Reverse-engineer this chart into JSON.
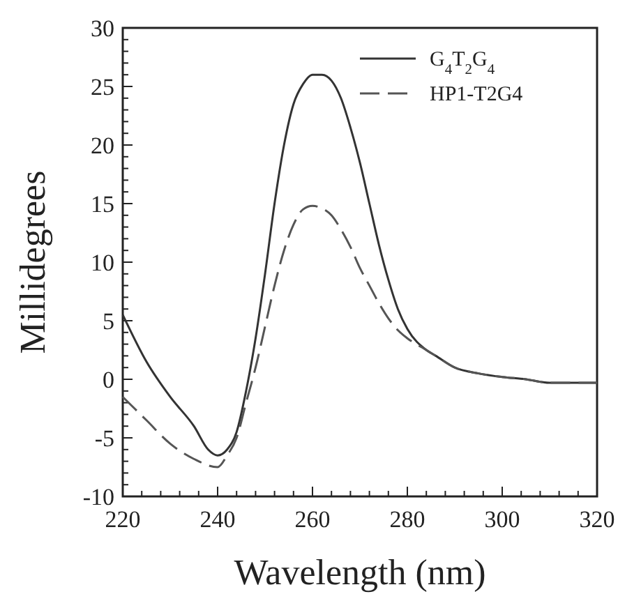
{
  "chart_data": {
    "type": "line",
    "xlabel": "Wavelength (nm)",
    "ylabel": "Millidegrees",
    "xlim": [
      220,
      320
    ],
    "ylim": [
      -10,
      30
    ],
    "xticks": [
      220,
      {
        "value": 224,
        "label": null
      },
      {
        "value": 228,
        "label": null
      },
      {
        "value": 232,
        "label": null
      },
      {
        "value": 236,
        "label": null
      },
      240,
      {
        "value": 244,
        "label": null
      },
      {
        "value": 248,
        "label": null
      },
      {
        "value": 252,
        "label": null
      },
      {
        "value": 256,
        "label": null
      },
      260,
      {
        "value": 264,
        "label": null
      },
      {
        "value": 268,
        "label": null
      },
      {
        "value": 272,
        "label": null
      },
      {
        "value": 276,
        "label": null
      },
      280,
      {
        "value": 284,
        "label": null
      },
      {
        "value": 288,
        "label": null
      },
      {
        "value": 292,
        "label": null
      },
      {
        "value": 296,
        "label": null
      },
      300,
      {
        "value": 304,
        "label": null
      },
      {
        "value": 308,
        "label": null
      },
      {
        "value": 312,
        "label": null
      },
      {
        "value": 316,
        "label": null
      },
      320
    ],
    "yticks": [
      -10,
      {
        "value": -9,
        "label": null
      },
      {
        "value": -8,
        "label": null
      },
      {
        "value": -7,
        "label": null
      },
      {
        "value": -6,
        "label": null
      },
      -5,
      {
        "value": -4,
        "label": null
      },
      {
        "value": -3,
        "label": null
      },
      {
        "value": -2,
        "label": null
      },
      {
        "value": -1,
        "label": null
      },
      0,
      {
        "value": 1,
        "label": null
      },
      {
        "value": 2,
        "label": null
      },
      {
        "value": 3,
        "label": null
      },
      {
        "value": 4,
        "label": null
      },
      5,
      {
        "value": 6,
        "label": null
      },
      {
        "value": 7,
        "label": null
      },
      {
        "value": 8,
        "label": null
      },
      {
        "value": 9,
        "label": null
      },
      10,
      {
        "value": 11,
        "label": null
      },
      {
        "value": 12,
        "label": null
      },
      {
        "value": 13,
        "label": null
      },
      {
        "value": 14,
        "label": null
      },
      15,
      {
        "value": 16,
        "label": null
      },
      {
        "value": 17,
        "label": null
      },
      {
        "value": 18,
        "label": null
      },
      {
        "value": 19,
        "label": null
      },
      20,
      {
        "value": 21,
        "label": null
      },
      {
        "value": 22,
        "label": null
      },
      {
        "value": 23,
        "label": null
      },
      {
        "value": 24,
        "label": null
      },
      25,
      {
        "value": 26,
        "label": null
      },
      {
        "value": 27,
        "label": null
      },
      {
        "value": 28,
        "label": null
      },
      {
        "value": 29,
        "label": null
      },
      30
    ],
    "grid": false,
    "legend": "top right",
    "marker": "none",
    "series": [
      {
        "name": "G$_{4}$T$_{2}$G$_{4}$",
        "color": "#333333",
        "line_style": "solid",
        "x": [
          220,
          225,
          230,
          235,
          238,
          240,
          242,
          244,
          246,
          248,
          250,
          252,
          254,
          256,
          258,
          260,
          262,
          264,
          266,
          268,
          270,
          272,
          274,
          276,
          278,
          280,
          284,
          286,
          290,
          295,
          300,
          305,
          310,
          320
        ],
        "values": [
          5.5,
          1.5,
          -1.5,
          -4,
          -6,
          -6.5,
          -6,
          -4.5,
          -1,
          3.5,
          9,
          15,
          20,
          23.5,
          25.2,
          26,
          26,
          25.5,
          24,
          21.5,
          18.5,
          15,
          11.5,
          8.5,
          6,
          4.3,
          2.5,
          2,
          1,
          0.5,
          0.2,
          0,
          -0.3,
          -0.3
        ]
      },
      {
        "name": "HP1-T2G4",
        "color": "#555555",
        "line_style": "dashed",
        "x": [
          220,
          225,
          230,
          235,
          240,
          242,
          244,
          246,
          248,
          250,
          252,
          254,
          256,
          258,
          260,
          262,
          264,
          266,
          268,
          270,
          272,
          274,
          276,
          278,
          280,
          284,
          286,
          290,
          295,
          300,
          305,
          310,
          320
        ],
        "values": [
          -1.5,
          -3.5,
          -5.5,
          -6.8,
          -7.5,
          -6.5,
          -5,
          -2,
          1,
          4.5,
          8,
          11,
          13.2,
          14.5,
          14.8,
          14.6,
          14,
          12.8,
          11.3,
          9.5,
          8,
          6.5,
          5.2,
          4.2,
          3.5,
          2.5,
          2,
          1,
          0.5,
          0.2,
          0,
          -0.3,
          -0.3
        ]
      }
    ]
  }
}
